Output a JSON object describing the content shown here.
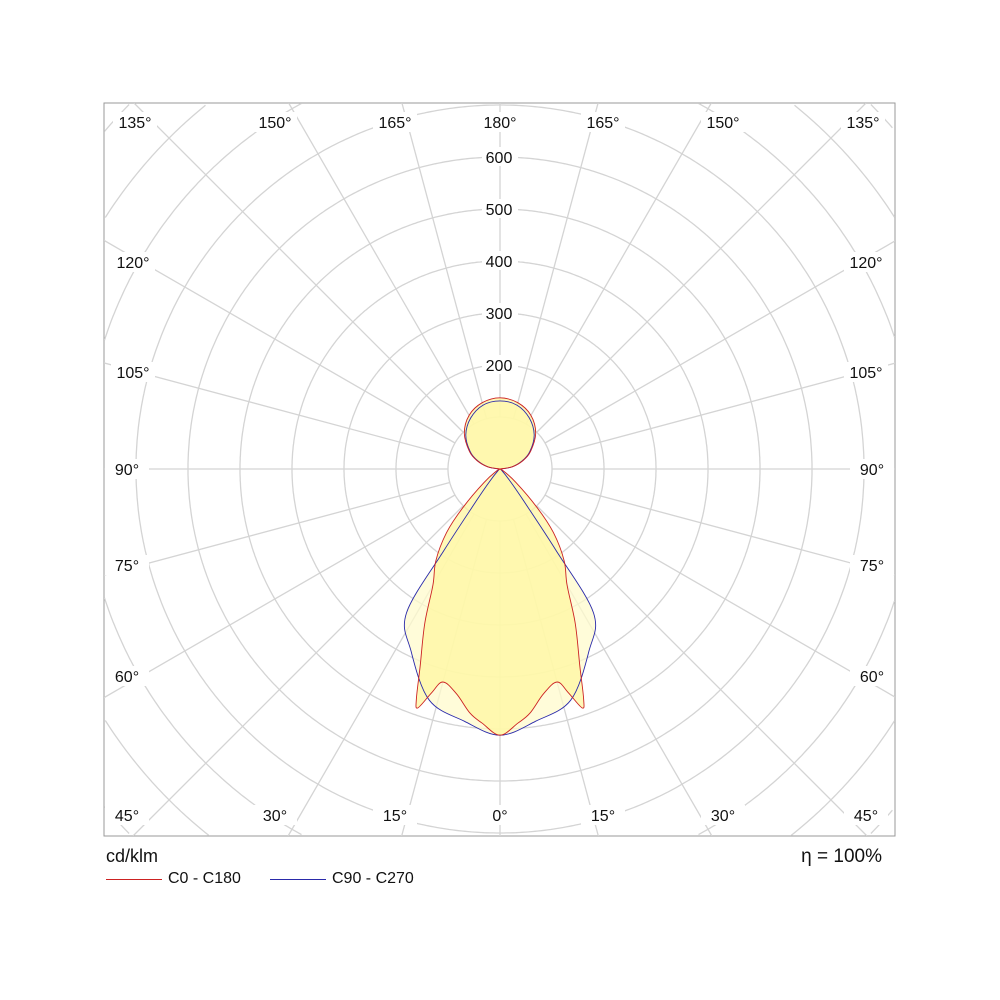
{
  "chart_data": {
    "type": "polar",
    "unit_label": "cd/klm",
    "efficiency_label": "η = 100%",
    "radial_ticks": [
      200,
      300,
      400,
      500,
      600
    ],
    "radial_grid_step": 100,
    "angle_labels_left": [
      "135°",
      "150°",
      "165°",
      "180°",
      "120°",
      "105°",
      "90°",
      "75°",
      "60°",
      "45°",
      "30°",
      "15°",
      "0°"
    ],
    "angle_labels_right": [
      "165°",
      "150°",
      "135°",
      "120°",
      "105°",
      "90°",
      "75°",
      "60°",
      "45°",
      "30°",
      "15°"
    ],
    "grid": true,
    "legend_placement": "bottom-left",
    "series": [
      {
        "name": "C0 - C180",
        "color": "#cc2222",
        "fill": "#fff7a0",
        "gamma": [
          0,
          4,
          7,
          11,
          15,
          17,
          19,
          20,
          22,
          26,
          30,
          35,
          40,
          44,
          50,
          60,
          70,
          90,
          100,
          110,
          120,
          135,
          150,
          165,
          180
        ],
        "intensity": [
          512,
          490,
          473,
          440,
          424,
          450,
          486,
          470,
          410,
          330,
          258,
          215,
          160,
          102,
          40,
          8,
          0,
          0,
          24,
          47,
          68,
          97,
          119,
          132,
          137
        ]
      },
      {
        "name": "C90 - C270",
        "color": "#2a2aaa",
        "fill": "#fffbcc",
        "gamma": [
          0,
          8,
          17,
          26,
          33,
          34.5,
          36.6,
          40,
          50,
          60,
          90,
          100,
          110,
          120,
          135,
          150,
          165,
          180
        ],
        "intensity": [
          512,
          490,
          465,
          390,
          330,
          190,
          75,
          30,
          5,
          0,
          0,
          23,
          45,
          66,
          93,
          113,
          127,
          131
        ]
      }
    ]
  }
}
